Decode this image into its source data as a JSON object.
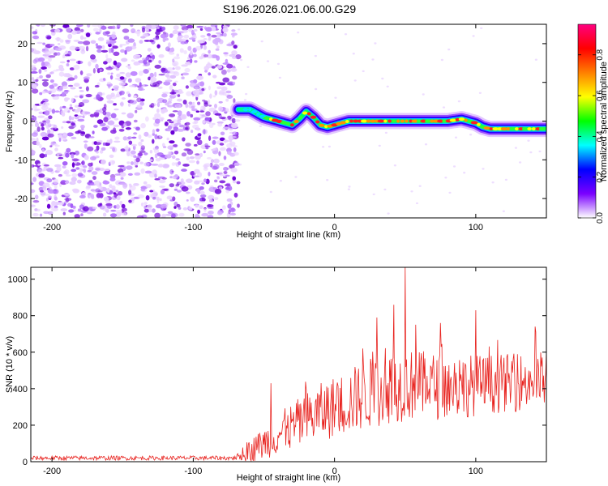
{
  "figure": {
    "title": "S196.2026.021.06.00.G29"
  },
  "chart_data": [
    {
      "type": "heatmap",
      "xlabel": "Height of straight line (km)",
      "ylabel": "Frequency (Hz)",
      "xlim": [
        -215,
        150
      ],
      "ylim": [
        -25,
        25
      ],
      "xticks": [
        -200,
        -100,
        0,
        100
      ],
      "xtick_labels": [
        "-200",
        "-100",
        "0",
        "100"
      ],
      "yticks": [
        -20,
        -10,
        0,
        10,
        20
      ],
      "ytick_labels": [
        "-20",
        "-10",
        "0",
        "10",
        "20"
      ],
      "noise_region_x": [
        -215,
        -68
      ],
      "ridge": {
        "x": [
          -68,
          -60,
          -55,
          -50,
          -45,
          -40,
          -35,
          -30,
          -25,
          -20,
          -15,
          -10,
          -5,
          0,
          5,
          10,
          20,
          40,
          60,
          80,
          90,
          95,
          100,
          105,
          110,
          120,
          150
        ],
        "freq": [
          3,
          3,
          2,
          1,
          0.5,
          0,
          -0.5,
          -1,
          0.5,
          2.5,
          1,
          -1,
          -1.5,
          -1,
          -0.5,
          0,
          0,
          0,
          0,
          0,
          0.5,
          0,
          -0.5,
          -1.5,
          -2,
          -2,
          -2
        ]
      },
      "colorbar": {
        "label": "Normalized spectral amplitude",
        "range": [
          0,
          0.95
        ],
        "ticks": [
          0.0,
          0.2,
          0.4,
          0.6,
          0.8
        ],
        "tick_labels": [
          "0.0",
          "0.2",
          "0.4",
          "0.6",
          "0.8"
        ],
        "colors": [
          "#ffffff",
          "#7a00ff",
          "#0000ff",
          "#00ffff",
          "#00ff00",
          "#ffff00",
          "#ff8000",
          "#ff0000",
          "#ff0080"
        ]
      }
    },
    {
      "type": "line",
      "xlabel": "Height of straight line (km)",
      "ylabel": "SNR (10 * v/v)",
      "xlim": [
        -215,
        150
      ],
      "ylim": [
        0,
        1065
      ],
      "xticks": [
        -200,
        -100,
        0,
        100
      ],
      "xtick_labels": [
        "-200",
        "-100",
        "0",
        "100"
      ],
      "yticks": [
        0,
        200,
        400,
        600,
        800,
        1000
      ],
      "ytick_labels": [
        "0",
        "200",
        "400",
        "600",
        "800",
        "1000"
      ],
      "line_color": "#e8231f",
      "trend": {
        "x": [
          -215,
          -70,
          -60,
          -50,
          -40,
          -30,
          -20,
          -10,
          0,
          10,
          20,
          30,
          40,
          50,
          60,
          80,
          100,
          120,
          140,
          150
        ],
        "base": [
          20,
          20,
          60,
          100,
          150,
          190,
          230,
          270,
          300,
          330,
          360,
          390,
          410,
          420,
          420,
          410,
          420,
          430,
          440,
          450
        ],
        "amp": [
          12,
          12,
          60,
          90,
          110,
          130,
          150,
          160,
          170,
          180,
          190,
          200,
          200,
          200,
          190,
          180,
          170,
          160,
          160,
          160
        ]
      },
      "peaks": [
        {
          "x": 50,
          "y": 1065
        },
        {
          "x": 42,
          "y": 860
        },
        {
          "x": 100,
          "y": 830
        },
        {
          "x": 30,
          "y": 790
        },
        {
          "x": 75,
          "y": 760
        },
        {
          "x": 142,
          "y": 740
        },
        {
          "x": 20,
          "y": 620
        },
        {
          "x": -45,
          "y": 430
        }
      ]
    }
  ]
}
